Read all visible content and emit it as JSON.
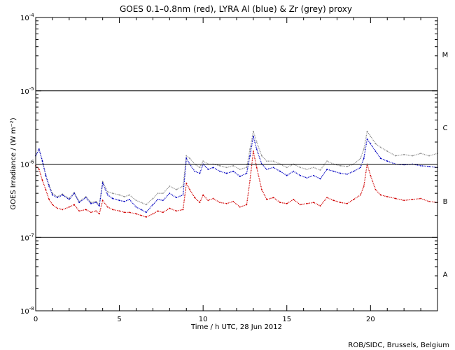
{
  "chart_data": {
    "type": "line",
    "title": "GOES 0.1–0.8nm (red), LYRA Al (blue) & Zr (grey) proxy",
    "xlabel": "Time / h UTC, 28 Jun 2012",
    "ylabel": "GOES Irradiance / (W m⁻²)",
    "xlim": [
      0,
      24
    ],
    "ylim": [
      1e-08,
      0.0001
    ],
    "yscale": "log",
    "x_ticks": [
      0,
      5,
      10,
      15,
      20
    ],
    "x_tick_labels": [
      "0",
      "5",
      "10",
      "15",
      "20"
    ],
    "y_ticks": [
      {
        "base": "10",
        "exp": "-8",
        "value": 1e-08
      },
      {
        "base": "10",
        "exp": "-7",
        "value": 1e-07
      },
      {
        "base": "10",
        "exp": "-6",
        "value": 1e-06
      },
      {
        "base": "10",
        "exp": "-5",
        "value": 1e-05
      },
      {
        "base": "10",
        "exp": "-4",
        "value": 0.0001
      }
    ],
    "threshold_lines": [
      1e-07,
      1e-06,
      1e-05
    ],
    "flare_classes": [
      {
        "label": "M",
        "value": 3.16e-05
      },
      {
        "label": "C",
        "value": 3.16e-06
      },
      {
        "label": "B",
        "value": 3.16e-07
      },
      {
        "label": "A",
        "value": 3.16e-08
      }
    ],
    "x": [
      0,
      0.2,
      0.4,
      0.6,
      0.8,
      1.0,
      1.3,
      1.6,
      2.0,
      2.3,
      2.6,
      3.0,
      3.3,
      3.6,
      3.8,
      4.0,
      4.3,
      4.6,
      5.0,
      5.3,
      5.6,
      6.0,
      6.3,
      6.6,
      7.0,
      7.3,
      7.6,
      8.0,
      8.4,
      8.8,
      9.0,
      9.2,
      9.5,
      9.8,
      10.0,
      10.3,
      10.6,
      11.0,
      11.4,
      11.8,
      12.2,
      12.6,
      12.8,
      13.0,
      13.2,
      13.5,
      13.8,
      14.2,
      14.6,
      15.0,
      15.4,
      15.8,
      16.2,
      16.6,
      17.0,
      17.4,
      17.8,
      18.2,
      18.6,
      19.0,
      19.4,
      19.6,
      19.8,
      20.0,
      20.3,
      20.6,
      21.0,
      21.5,
      22.0,
      22.5,
      23.0,
      23.5,
      24.0
    ],
    "series": [
      {
        "color": "#d00000",
        "values": [
          9.5e-07,
          8.5e-07,
          6e-07,
          4.5e-07,
          3.3e-07,
          2.8e-07,
          2.5e-07,
          2.4e-07,
          2.6e-07,
          2.8e-07,
          2.3e-07,
          2.4e-07,
          2.2e-07,
          2.3e-07,
          2.1e-07,
          3.2e-07,
          2.6e-07,
          2.4e-07,
          2.3e-07,
          2.2e-07,
          2.2e-07,
          2.1e-07,
          2e-07,
          1.9e-07,
          2.1e-07,
          2.3e-07,
          2.2e-07,
          2.5e-07,
          2.3e-07,
          2.4e-07,
          5.5e-07,
          4.5e-07,
          3.5e-07,
          3e-07,
          3.8e-07,
          3.2e-07,
          3.4e-07,
          3e-07,
          2.9e-07,
          3.1e-07,
          2.6e-07,
          2.8e-07,
          6e-07,
          1.5e-06,
          9e-07,
          4.5e-07,
          3.3e-07,
          3.5e-07,
          3e-07,
          2.9e-07,
          3.3e-07,
          2.8e-07,
          2.9e-07,
          3e-07,
          2.7e-07,
          3.5e-07,
          3.2e-07,
          3e-07,
          2.9e-07,
          3.3e-07,
          3.8e-07,
          5e-07,
          1e-06,
          7e-07,
          4.5e-07,
          3.8e-07,
          3.6e-07,
          3.4e-07,
          3.2e-07,
          3.3e-07,
          3.4e-07,
          3.1e-07,
          3e-07
        ]
      },
      {
        "color": "#0000c0",
        "values": [
          1.3e-06,
          1.6e-06,
          1.1e-06,
          7e-07,
          5e-07,
          3.8e-07,
          3.5e-07,
          3.8e-07,
          3.3e-07,
          4e-07,
          3e-07,
          3.5e-07,
          2.9e-07,
          3e-07,
          2.7e-07,
          5.5e-07,
          3.8e-07,
          3.4e-07,
          3.2e-07,
          3.1e-07,
          3.3e-07,
          2.6e-07,
          2.4e-07,
          2.2e-07,
          2.8e-07,
          3.3e-07,
          3.2e-07,
          4e-07,
          3.5e-07,
          3.8e-07,
          1.2e-06,
          1e-06,
          8e-07,
          7.5e-07,
          1e-06,
          8.5e-07,
          9e-07,
          8e-07,
          7.5e-07,
          8e-07,
          6.8e-07,
          7.5e-07,
          1.3e-06,
          2.4e-06,
          1.6e-06,
          1e-06,
          8.5e-07,
          9e-07,
          8e-07,
          7e-07,
          8e-07,
          7e-07,
          6.5e-07,
          7e-07,
          6.3e-07,
          8.5e-07,
          8e-07,
          7.5e-07,
          7.3e-07,
          8e-07,
          9e-07,
          1.2e-06,
          2.2e-06,
          1.9e-06,
          1.5e-06,
          1.2e-06,
          1.1e-06,
          1e-06,
          9.8e-07,
          1e-06,
          9.5e-07,
          9.3e-07,
          9e-07
        ]
      },
      {
        "color": "#909090",
        "values": [
          1.3e-06,
          1.6e-06,
          1.1e-06,
          7.2e-07,
          5.2e-07,
          4e-07,
          3.6e-07,
          3.9e-07,
          3.4e-07,
          4.1e-07,
          3.1e-07,
          3.6e-07,
          3e-07,
          3.1e-07,
          2.8e-07,
          5.8e-07,
          4.2e-07,
          4e-07,
          3.8e-07,
          3.6e-07,
          3.8e-07,
          3.2e-07,
          3e-07,
          2.8e-07,
          3.4e-07,
          4e-07,
          4e-07,
          5e-07,
          4.5e-07,
          5e-07,
          1.3e-06,
          1.2e-06,
          1e-06,
          9e-07,
          1.1e-06,
          1e-06,
          1e-06,
          9.5e-07,
          9e-07,
          9.5e-07,
          8.5e-07,
          9e-07,
          1.6e-06,
          2.8e-06,
          2e-06,
          1.3e-06,
          1.1e-06,
          1.1e-06,
          1e-06,
          9e-07,
          1e-06,
          9e-07,
          8.5e-07,
          9e-07,
          8.3e-07,
          1.1e-06,
          1e-06,
          9.5e-07,
          9.3e-07,
          1e-06,
          1.2e-06,
          1.6e-06,
          2.8e-06,
          2.4e-06,
          1.9e-06,
          1.7e-06,
          1.5e-06,
          1.3e-06,
          1.35e-06,
          1.3e-06,
          1.4e-06,
          1.3e-06,
          1.4e-06
        ]
      }
    ],
    "grid": false,
    "legend": "none"
  },
  "credit": "ROB/SIDC, Brussels, Belgium"
}
